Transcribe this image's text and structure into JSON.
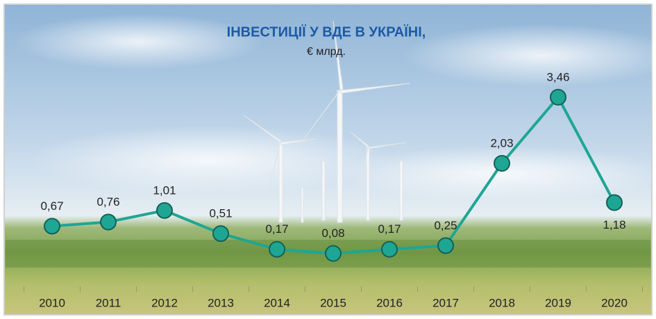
{
  "chart_data": {
    "type": "line",
    "title": "ІНВЕСТИЦІЇ У ВДЕ В УКРАЇНІ,",
    "subtitle": "€ млрд.",
    "categories": [
      "2010",
      "2011",
      "2012",
      "2013",
      "2014",
      "2015",
      "2016",
      "2017",
      "2018",
      "2019",
      "2020"
    ],
    "values": [
      0.67,
      0.76,
      1.01,
      0.51,
      0.17,
      0.08,
      0.17,
      0.25,
      2.03,
      3.46,
      1.18
    ],
    "value_labels": [
      "0,67",
      "0,76",
      "1,01",
      "0,51",
      "0,17",
      "0,08",
      "0,17",
      "0,25",
      "2,03",
      "3,46",
      "1,18"
    ],
    "color": "#1ea694"
  }
}
